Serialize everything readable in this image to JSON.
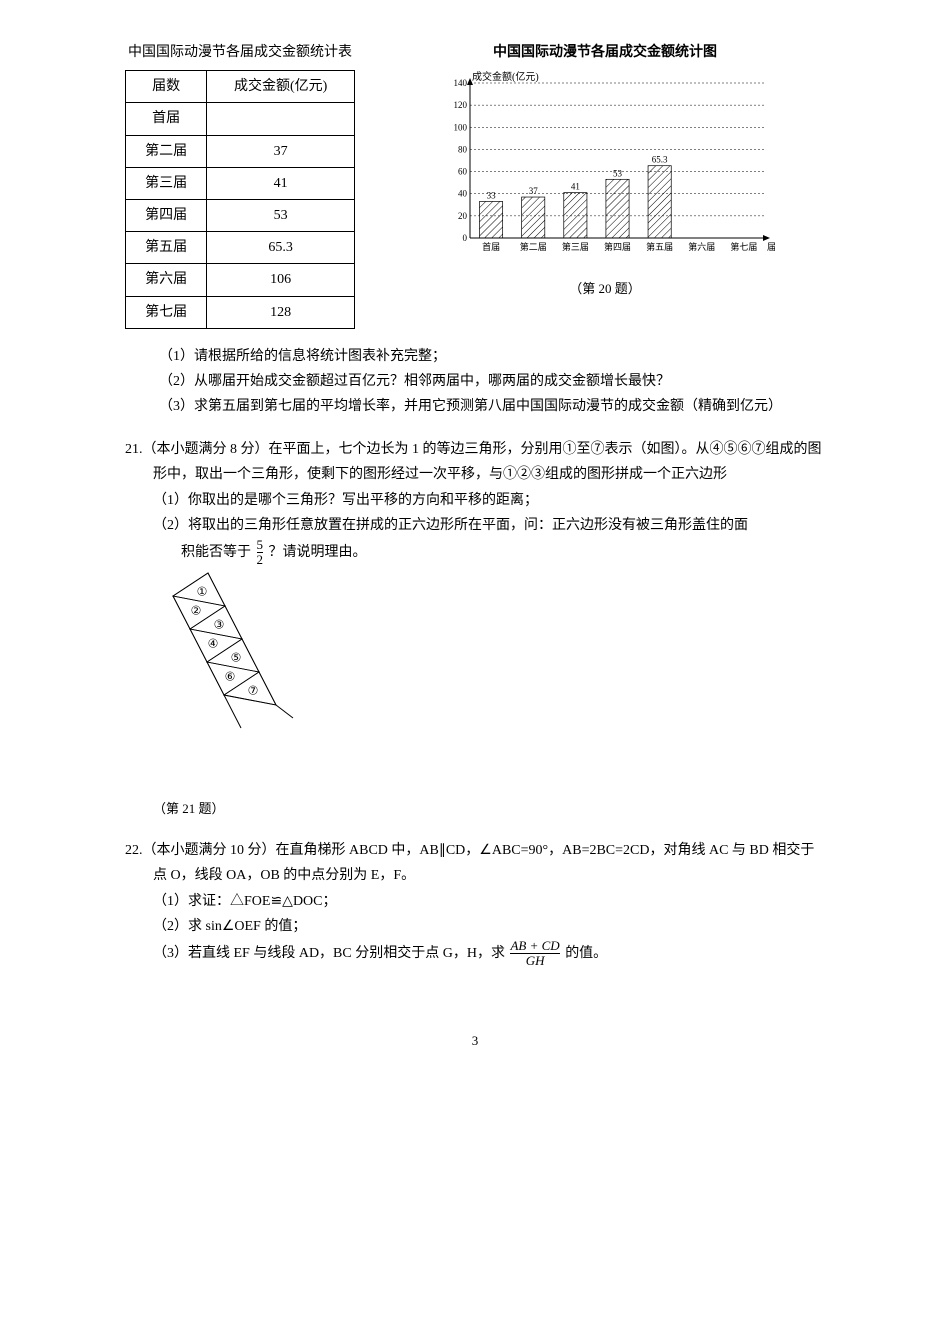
{
  "table": {
    "title": "中国国际动漫节各届成交金额统计表",
    "headers": [
      "届数",
      "成交金额(亿元)"
    ],
    "rows": [
      [
        "首届",
        ""
      ],
      [
        "第二届",
        "37"
      ],
      [
        "第三届",
        "41"
      ],
      [
        "第四届",
        "53"
      ],
      [
        "第五届",
        "65.3"
      ],
      [
        "第六届",
        "106"
      ],
      [
        "第七届",
        "128"
      ]
    ]
  },
  "chart": {
    "title": "中国国际动漫节各届成交金额统计图",
    "ylabel": "成交金额(亿元)",
    "xlabel": "届数",
    "ymax": 140,
    "ytick_step": 20,
    "categories": [
      "首届",
      "第二届",
      "第三届",
      "第四届",
      "第五届",
      "第六届",
      "第七届"
    ],
    "values": [
      33,
      37,
      41,
      53,
      65.3,
      null,
      null
    ],
    "value_labels": [
      "33",
      "37",
      "41",
      "53",
      "65.3",
      "",
      ""
    ],
    "bar_fill": "hatched",
    "grid_style": "dashed",
    "caption": "（第 20 题）"
  },
  "q20": {
    "s1": "（1）请根据所给的信息将统计图表补充完整；",
    "s2": "（2）从哪届开始成交金额超过百亿元？相邻两届中，哪两届的成交金额增长最快？",
    "s3": "（3）求第五届到第七届的平均增长率，并用它预测第八届中国国际动漫节的成交金额（精确到亿元）"
  },
  "q21": {
    "head": "21.（本小题满分 8 分）在平面上，七个边长为 1 的等边三角形，分别用①至⑦表示（如图）。从④⑤⑥⑦组成的图形中，取出一个三角形，使剩下的图形经过一次平移，与①②③组成的图形拼成一个正六边形",
    "s1": "（1）你取出的是哪个三角形？写出平移的方向和平移的距离；",
    "s2a": "（2）将取出的三角形任意放置在拼成的正六边形所在平面，问：正六边形没有被三角形盖住的面",
    "s2b_pre": "积能否等于",
    "s2b_post": "？请说明理由。",
    "frac_num": "5",
    "frac_den": "2",
    "labels": [
      "①",
      "②",
      "③",
      "④",
      "⑤",
      "⑥",
      "⑦"
    ],
    "caption": "（第 21 题）"
  },
  "q22": {
    "head": "22.（本小题满分 10 分）在直角梯形 ABCD 中，AB∥CD，∠ABC=90°，AB=2BC=2CD，对角线 AC 与 BD 相交于点 O，线段 OA，OB 的中点分别为 E，F。",
    "s1": "（1）求证：△FOE≌△DOC；",
    "s2": "（2）求 sin∠OEF 的值；",
    "s3_pre": "（3）若直线 EF 与线段 AD，BC 分别相交于点 G，H，求",
    "s3_post": "的值。",
    "frac_num": "AB + CD",
    "frac_den": "GH"
  },
  "page_num": "3"
}
